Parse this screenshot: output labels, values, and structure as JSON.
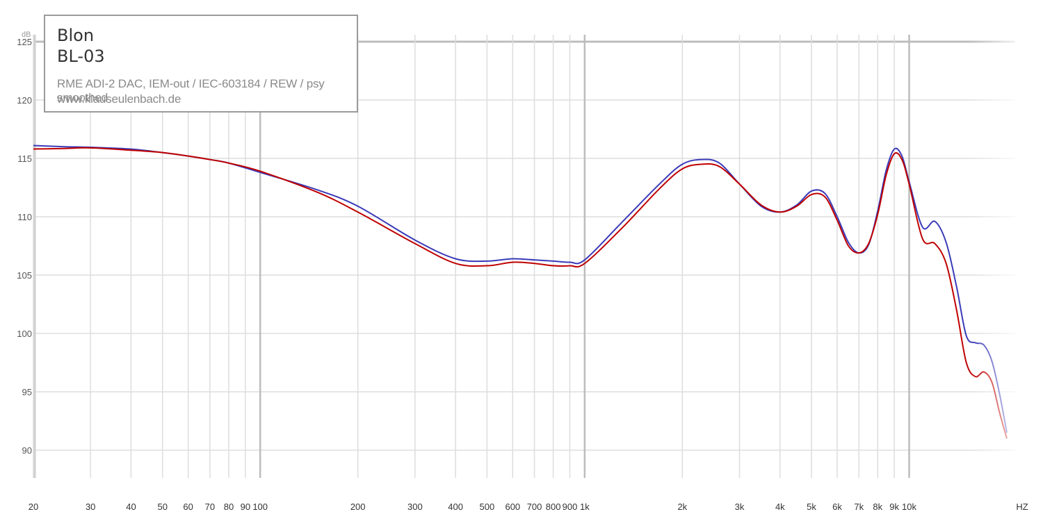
{
  "legend": {
    "brand": "Blon",
    "model": "BL-03",
    "setup": "RME ADI-2 DAC, IEM-out / IEC-603184 / REW / psy smoothed",
    "site": "www.klauseulenbach.de"
  },
  "colors": {
    "series_left": "#3a3ab8",
    "series_right": "#bf0000",
    "grid_major": "#c8c8c8",
    "grid_minor": "#dddddd",
    "background": "#ffffff"
  },
  "chart_data": {
    "type": "line",
    "title": "",
    "xlabel": "",
    "ylabel": "",
    "x_unit": "HZ",
    "y_unit": "dB",
    "x_scale": "log",
    "xlim": [
      20,
      20000
    ],
    "ylim": [
      88,
      125
    ],
    "grid": true,
    "y_ticks": [
      125,
      120,
      115,
      110,
      105,
      100,
      95,
      90
    ],
    "x_ticks": [
      {
        "value": 20,
        "label": "20"
      },
      {
        "value": 30,
        "label": "30"
      },
      {
        "value": 40,
        "label": "40"
      },
      {
        "value": 50,
        "label": "50"
      },
      {
        "value": 60,
        "label": "60"
      },
      {
        "value": 70,
        "label": "70"
      },
      {
        "value": 80,
        "label": "80"
      },
      {
        "value": 90,
        "label": "90"
      },
      {
        "value": 100,
        "label": "100"
      },
      {
        "value": 200,
        "label": "200"
      },
      {
        "value": 300,
        "label": "300"
      },
      {
        "value": 400,
        "label": "400"
      },
      {
        "value": 500,
        "label": "500"
      },
      {
        "value": 600,
        "label": "600"
      },
      {
        "value": 700,
        "label": "700"
      },
      {
        "value": 800,
        "label": "800"
      },
      {
        "value": 900,
        "label": "900"
      },
      {
        "value": 1000,
        "label": "1k"
      },
      {
        "value": 2000,
        "label": "2k"
      },
      {
        "value": 3000,
        "label": "3k"
      },
      {
        "value": 4000,
        "label": "4k"
      },
      {
        "value": 5000,
        "label": "5k"
      },
      {
        "value": 6000,
        "label": "6k"
      },
      {
        "value": 7000,
        "label": "7k"
      },
      {
        "value": 8000,
        "label": "8k"
      },
      {
        "value": 9000,
        "label": "9k"
      },
      {
        "value": 10000,
        "label": "10k"
      }
    ],
    "series": [
      {
        "x": [
          20,
          25,
          30,
          40,
          50,
          60,
          70,
          80,
          100,
          150,
          200,
          300,
          400,
          500,
          600,
          700,
          800,
          900,
          1000,
          1300,
          1700,
          2000,
          2300,
          2600,
          3000,
          3500,
          4000,
          4500,
          5000,
          5500,
          6000,
          6500,
          7000,
          7500,
          8000,
          8500,
          9000,
          9500,
          10000,
          11000,
          12000,
          13000,
          14000,
          15000,
          16000,
          17000,
          18000,
          19000,
          20000
        ],
        "values": [
          116.1,
          116.0,
          115.95,
          115.8,
          115.5,
          115.2,
          114.9,
          114.6,
          113.8,
          112.3,
          110.9,
          108.0,
          106.4,
          106.2,
          106.4,
          106.3,
          106.2,
          106.1,
          106.3,
          109.5,
          112.8,
          114.5,
          114.9,
          114.6,
          112.8,
          110.9,
          110.4,
          111.0,
          112.2,
          112.0,
          110.0,
          107.8,
          106.9,
          107.6,
          110.5,
          114.0,
          115.8,
          115.2,
          113.0,
          109.1,
          109.6,
          107.8,
          104.0,
          99.8,
          99.2,
          99.0,
          97.6,
          94.8,
          91.5
        ]
      },
      {
        "x": [
          20,
          25,
          30,
          40,
          50,
          60,
          70,
          80,
          100,
          150,
          200,
          300,
          400,
          500,
          600,
          700,
          800,
          900,
          1000,
          1300,
          1700,
          2000,
          2300,
          2600,
          3000,
          3500,
          4000,
          4500,
          5000,
          5500,
          6000,
          6500,
          7000,
          7500,
          8000,
          8500,
          9000,
          9500,
          10000,
          11000,
          12000,
          13000,
          14000,
          15000,
          16000,
          17000,
          18000,
          19000,
          20000
        ],
        "values": [
          115.8,
          115.85,
          115.9,
          115.7,
          115.5,
          115.2,
          114.9,
          114.6,
          113.9,
          112.1,
          110.4,
          107.7,
          106.0,
          105.8,
          106.1,
          106.0,
          105.8,
          105.8,
          106.0,
          109.0,
          112.4,
          114.1,
          114.5,
          114.3,
          112.8,
          111.0,
          110.4,
          110.9,
          111.9,
          111.7,
          109.7,
          107.5,
          106.9,
          107.7,
          110.2,
          113.6,
          115.4,
          114.9,
          112.8,
          108.1,
          107.7,
          106.0,
          102.0,
          97.5,
          96.3,
          96.7,
          95.8,
          93.2,
          91.0
        ]
      }
    ]
  }
}
